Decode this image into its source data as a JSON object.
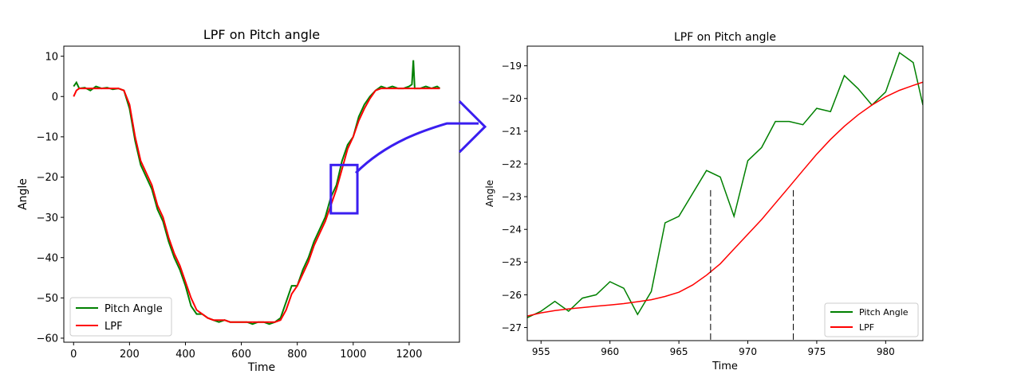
{
  "colors": {
    "pitch": "#008000",
    "lpf": "#ff0000",
    "annotation": "#3a1ef0",
    "axis": "#000000"
  },
  "chart_data": [
    {
      "type": "line",
      "title": "LPF on Pitch angle",
      "xlabel": "Time",
      "ylabel": "Angle",
      "xlim": [
        -35,
        1380
      ],
      "ylim": [
        -61,
        12.5
      ],
      "xticks": [
        0,
        200,
        400,
        600,
        800,
        1000,
        1200
      ],
      "yticks": [
        10,
        0,
        -10,
        -20,
        -30,
        -40,
        -50,
        -60
      ],
      "grid": false,
      "legend_position": "lower-left",
      "series": [
        {
          "name": "Pitch Angle",
          "color": "#008000",
          "x": [
            0,
            10,
            20,
            40,
            60,
            80,
            100,
            120,
            140,
            160,
            180,
            200,
            220,
            240,
            260,
            280,
            300,
            320,
            340,
            360,
            380,
            400,
            420,
            440,
            460,
            480,
            500,
            520,
            540,
            560,
            580,
            600,
            620,
            640,
            660,
            680,
            700,
            720,
            740,
            760,
            780,
            800,
            820,
            840,
            860,
            880,
            900,
            920,
            940,
            960,
            980,
            1000,
            1020,
            1040,
            1060,
            1080,
            1100,
            1120,
            1140,
            1160,
            1180,
            1200,
            1210,
            1215,
            1220,
            1240,
            1260,
            1280,
            1300,
            1310
          ],
          "y": [
            2.5,
            3.5,
            2.0,
            2.2,
            1.5,
            2.5,
            2.0,
            2.2,
            1.8,
            2.0,
            1.5,
            -3,
            -11,
            -17,
            -20,
            -23,
            -28,
            -31,
            -36,
            -40,
            -43,
            -47,
            -52,
            -54,
            -54,
            -55,
            -55.5,
            -56,
            -55.5,
            -56,
            -56,
            -56,
            -56,
            -56.5,
            -56,
            -56,
            -56.5,
            -56,
            -55,
            -51,
            -47,
            -47,
            -43,
            -40,
            -36,
            -33,
            -30,
            -25,
            -22,
            -16,
            -12,
            -10,
            -5,
            -2,
            0,
            1.5,
            2.5,
            2.0,
            2.5,
            2.0,
            2.0,
            2.5,
            3.0,
            9.0,
            2.0,
            2.0,
            2.5,
            2.0,
            2.5,
            2.0
          ]
        },
        {
          "name": "LPF",
          "color": "#ff0000",
          "x": [
            0,
            10,
            20,
            40,
            60,
            80,
            100,
            120,
            140,
            160,
            180,
            200,
            220,
            240,
            260,
            280,
            300,
            320,
            340,
            360,
            380,
            400,
            420,
            440,
            460,
            480,
            500,
            520,
            540,
            560,
            580,
            600,
            620,
            640,
            660,
            680,
            700,
            720,
            740,
            760,
            780,
            800,
            820,
            840,
            860,
            880,
            900,
            920,
            940,
            960,
            980,
            1000,
            1020,
            1040,
            1060,
            1080,
            1100,
            1120,
            1140,
            1160,
            1180,
            1200,
            1220,
            1240,
            1260,
            1280,
            1300,
            1310
          ],
          "y": [
            0,
            1.5,
            2.0,
            2.0,
            2.0,
            2.0,
            2.0,
            2.0,
            2.0,
            2.0,
            1.5,
            -2,
            -10,
            -16,
            -19,
            -22,
            -27,
            -30,
            -35,
            -39,
            -42,
            -46,
            -50,
            -53,
            -54,
            -55,
            -55.5,
            -55.5,
            -55.5,
            -56,
            -56,
            -56,
            -56,
            -56,
            -56,
            -56,
            -56,
            -56,
            -55.5,
            -53,
            -49,
            -47,
            -44,
            -41,
            -37,
            -34,
            -31,
            -27,
            -23,
            -18,
            -13,
            -10,
            -6,
            -3,
            -0.5,
            1.5,
            2.0,
            2.0,
            2.0,
            2.0,
            2.0,
            2.0,
            2.0,
            2.0,
            2.0,
            2.0,
            2.0,
            2.0
          ]
        }
      ]
    },
    {
      "type": "line",
      "title": "LPF on Pitch angle",
      "xlabel": "Time",
      "ylabel": "Angle",
      "xlim": [
        954,
        982.7
      ],
      "ylim": [
        -27.4,
        -18.4
      ],
      "xticks": [
        955,
        960,
        965,
        970,
        975,
        980
      ],
      "yticks": [
        -19,
        -20,
        -21,
        -22,
        -23,
        -24,
        -25,
        -26,
        -27
      ],
      "grid": false,
      "legend_position": "lower-right",
      "series": [
        {
          "name": "Pitch Angle",
          "color": "#008000",
          "x": [
            954,
            955,
            956,
            957,
            958,
            959,
            960,
            961,
            962,
            963,
            964,
            965,
            966,
            967,
            968,
            969,
            970,
            971,
            972,
            973,
            974,
            975,
            976,
            977,
            978,
            979,
            980,
            981,
            982,
            982.7
          ],
          "y": [
            -26.7,
            -26.5,
            -26.2,
            -26.5,
            -26.1,
            -26.0,
            -25.6,
            -25.8,
            -26.6,
            -25.9,
            -23.8,
            -23.6,
            -22.9,
            -22.2,
            -22.4,
            -23.6,
            -21.9,
            -21.5,
            -20.7,
            -20.7,
            -20.8,
            -20.3,
            -20.4,
            -19.3,
            -19.7,
            -20.2,
            -19.8,
            -18.6,
            -18.9,
            -20.2
          ]
        },
        {
          "name": "LPF",
          "color": "#ff0000",
          "x": [
            954,
            955,
            956,
            957,
            958,
            959,
            960,
            961,
            962,
            963,
            964,
            965,
            966,
            967,
            968,
            969,
            970,
            971,
            972,
            973,
            974,
            975,
            976,
            977,
            978,
            979,
            980,
            981,
            982,
            982.7
          ],
          "y": [
            -26.65,
            -26.55,
            -26.48,
            -26.43,
            -26.39,
            -26.35,
            -26.31,
            -26.27,
            -26.21,
            -26.15,
            -26.05,
            -25.92,
            -25.7,
            -25.4,
            -25.05,
            -24.6,
            -24.15,
            -23.7,
            -23.2,
            -22.7,
            -22.2,
            -21.7,
            -21.25,
            -20.85,
            -20.5,
            -20.2,
            -19.95,
            -19.75,
            -19.6,
            -19.5
          ]
        }
      ],
      "markers": [
        {
          "x": 967.3,
          "y_top": -22.8
        },
        {
          "x": 973.3,
          "y_top": -22.8
        }
      ]
    }
  ]
}
